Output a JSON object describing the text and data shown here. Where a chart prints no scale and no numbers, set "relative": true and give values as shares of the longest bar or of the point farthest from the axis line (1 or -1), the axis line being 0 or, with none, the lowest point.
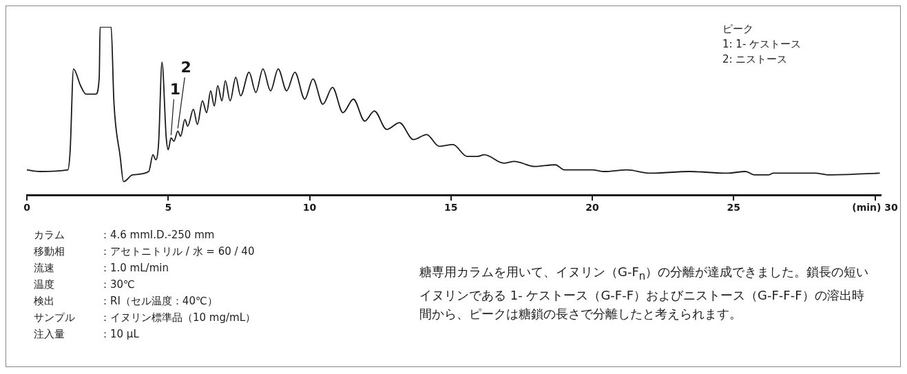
{
  "chart_data": {
    "type": "line",
    "relative": true,
    "x": [
      0,
      0.46,
      1.45,
      1.53,
      1.65,
      1.9,
      2.09,
      2.44,
      2.56,
      2.59,
      2.98,
      3.08,
      3.3,
      3.42,
      3.74,
      4.31,
      4.46,
      4.56,
      4.66,
      4.78,
      4.93,
      5.0,
      5.1,
      5.2,
      5.34,
      5.44,
      5.59,
      5.69,
      5.89,
      6.03,
      6.21,
      6.36,
      6.5,
      6.63,
      6.75,
      6.9,
      7.02,
      7.19,
      7.39,
      7.56,
      7.86,
      8.1,
      8.35,
      8.62,
      8.89,
      9.19,
      9.48,
      9.83,
      10.12,
      10.47,
      10.81,
      11.18,
      11.55,
      11.95,
      12.29,
      12.73,
      13.18,
      13.67,
      14.14,
      14.58,
      15.07,
      15.57,
      15.94,
      16.18,
      16.87,
      17.24,
      17.96,
      18.69,
      19.01,
      20.0,
      20.42,
      21.23,
      22.04,
      23.45,
      24.75,
      25.42,
      25.74,
      26.23,
      26.4,
      27.88,
      28.37,
      30.17
    ],
    "values": [
      0.15,
      0.14,
      0.15,
      0.26,
      0.75,
      0.65,
      0.6,
      0.6,
      0.7,
      1,
      1,
      0.55,
      0.23,
      0.08,
      0.12,
      0.14,
      0.24,
      0.21,
      0.31,
      0.79,
      0.34,
      0.27,
      0.34,
      0.32,
      0.38,
      0.35,
      0.45,
      0.41,
      0.51,
      0.42,
      0.56,
      0.49,
      0.62,
      0.53,
      0.65,
      0.56,
      0.68,
      0.56,
      0.7,
      0.59,
      0.73,
      0.61,
      0.75,
      0.62,
      0.75,
      0.62,
      0.73,
      0.57,
      0.69,
      0.54,
      0.64,
      0.49,
      0.57,
      0.44,
      0.5,
      0.39,
      0.43,
      0.33,
      0.36,
      0.29,
      0.3,
      0.23,
      0.23,
      0.24,
      0.19,
      0.2,
      0.17,
      0.18,
      0.15,
      0.15,
      0.14,
      0.15,
      0.13,
      0.14,
      0.13,
      0.14,
      0.12,
      0.12,
      0.13,
      0.13,
      0.12,
      0.13
    ],
    "color": "#1a1a1a",
    "xlim": [
      0,
      30.2
    ],
    "xticks": [
      0,
      5,
      10,
      15,
      20,
      25,
      {
        "value": 30,
        "label": "(min) 30"
      }
    ],
    "tick_labels": "x",
    "annotations": [
      {
        "text": "1",
        "x": 5.1,
        "y": 0.34
      },
      {
        "text": "2",
        "x": 5.34,
        "y": 0.38
      },
      "ピーク",
      "1: 1- ケストース",
      "2: ニストース",
      "カラム：4.6 mmI.D.-250 mm",
      "移動相：アセトニトリル / 水 = 60 / 40",
      "流速：1.0 mL/min",
      "温度：30℃",
      "検出：RI（セル温度：40℃）",
      "サンプル：イヌリン標準品（10 mg/mL）",
      "注入量：10 μL",
      "糖専用カラムを用いて、イヌリン（G-F$_{n}$）の分離が達成できました。鎖長の短いイヌリンである 1- ケストース（G-F-F）およびニストース（G-F-F-F）の溶出時間から、ピークは糖鎖の長さで分離したと考えられます。"
    ]
  }
}
